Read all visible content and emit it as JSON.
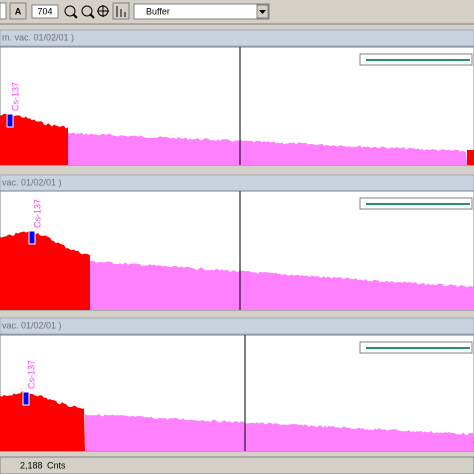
{
  "toolbar": {
    "text_button": "A",
    "channel": "704",
    "dropdown": "Buffer"
  },
  "panels": [
    {
      "title": "m. vac. 01/02/01 )",
      "peak_label": "Cs-137"
    },
    {
      "title": "vac. 01/02/01 )",
      "peak_label": "Cs-137"
    },
    {
      "title": "vac. 01/02/01 )",
      "peak_label": "Cs-137"
    }
  ],
  "status": {
    "value": "2,188",
    "unit": "Cnts"
  }
}
